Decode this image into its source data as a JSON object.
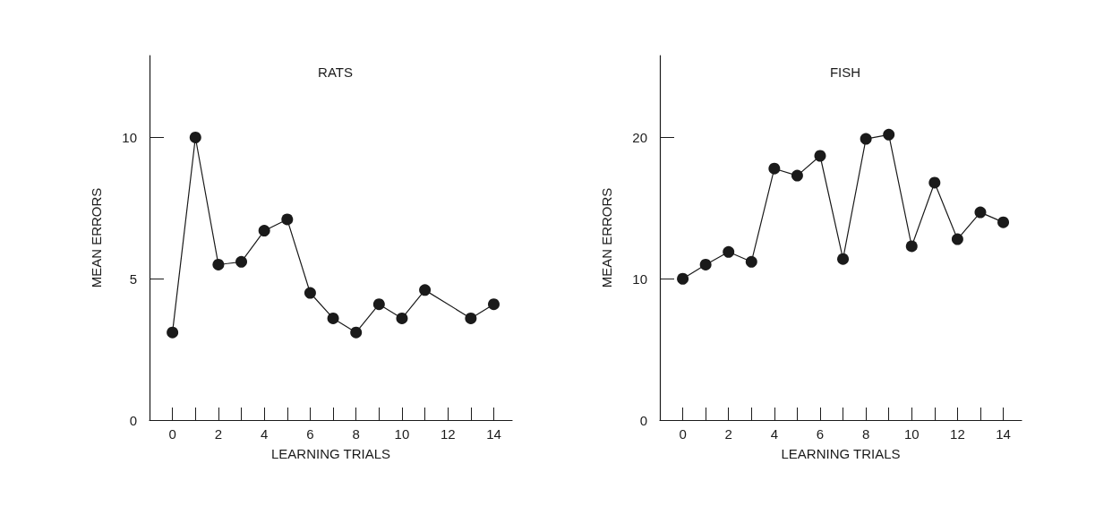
{
  "chart_data": [
    {
      "type": "line",
      "title": "RATS",
      "xlabel": "LEARNING TRIALS",
      "ylabel": "MEAN ERRORS",
      "marker": "circle",
      "line_style": "solid",
      "grid": false,
      "xlim": [
        -1,
        14.8
      ],
      "ylim": [
        0,
        12.9
      ],
      "xticks": [
        0,
        {
          "value": 1,
          "label": null
        },
        2,
        {
          "value": 3,
          "label": null
        },
        4,
        {
          "value": 5,
          "label": null
        },
        6,
        {
          "value": 7,
          "label": null
        },
        8,
        {
          "value": 9,
          "label": null
        },
        10,
        {
          "value": 11,
          "label": null
        },
        12,
        {
          "value": 13,
          "label": null
        },
        14
      ],
      "yticks": [
        0,
        5,
        10
      ],
      "series": [
        {
          "color": "#1a1a1a",
          "x": [
            0,
            1,
            2,
            3,
            4,
            5,
            6,
            7,
            8,
            9,
            10,
            11,
            13,
            14
          ],
          "values": [
            3.1,
            10,
            5.5,
            5.6,
            6.7,
            7.1,
            4.5,
            3.6,
            3.1,
            4.1,
            3.6,
            4.6,
            3.6,
            4.1
          ]
        }
      ]
    },
    {
      "type": "line",
      "title": "FISH",
      "xlabel": "LEARNING TRIALS",
      "ylabel": "MEAN ERRORS",
      "marker": "circle",
      "line_style": "solid",
      "grid": false,
      "xlim": [
        -1,
        14.8
      ],
      "ylim": [
        0,
        25.8
      ],
      "xticks": [
        0,
        {
          "value": 1,
          "label": null
        },
        2,
        {
          "value": 3,
          "label": null
        },
        4,
        {
          "value": 5,
          "label": null
        },
        6,
        {
          "value": 7,
          "label": null
        },
        8,
        {
          "value": 9,
          "label": null
        },
        10,
        {
          "value": 11,
          "label": null
        },
        12,
        {
          "value": 13,
          "label": null
        },
        14
      ],
      "yticks": [
        0,
        10,
        20
      ],
      "series": [
        {
          "color": "#1a1a1a",
          "x": [
            0,
            1,
            2,
            3,
            4,
            5,
            6,
            7,
            8,
            9,
            10,
            11,
            12,
            13,
            14
          ],
          "values": [
            10,
            11,
            11.9,
            11.2,
            17.8,
            17.3,
            18.7,
            11.4,
            19.9,
            20.2,
            12.3,
            16.8,
            12.8,
            14.7,
            14
          ]
        }
      ]
    }
  ]
}
